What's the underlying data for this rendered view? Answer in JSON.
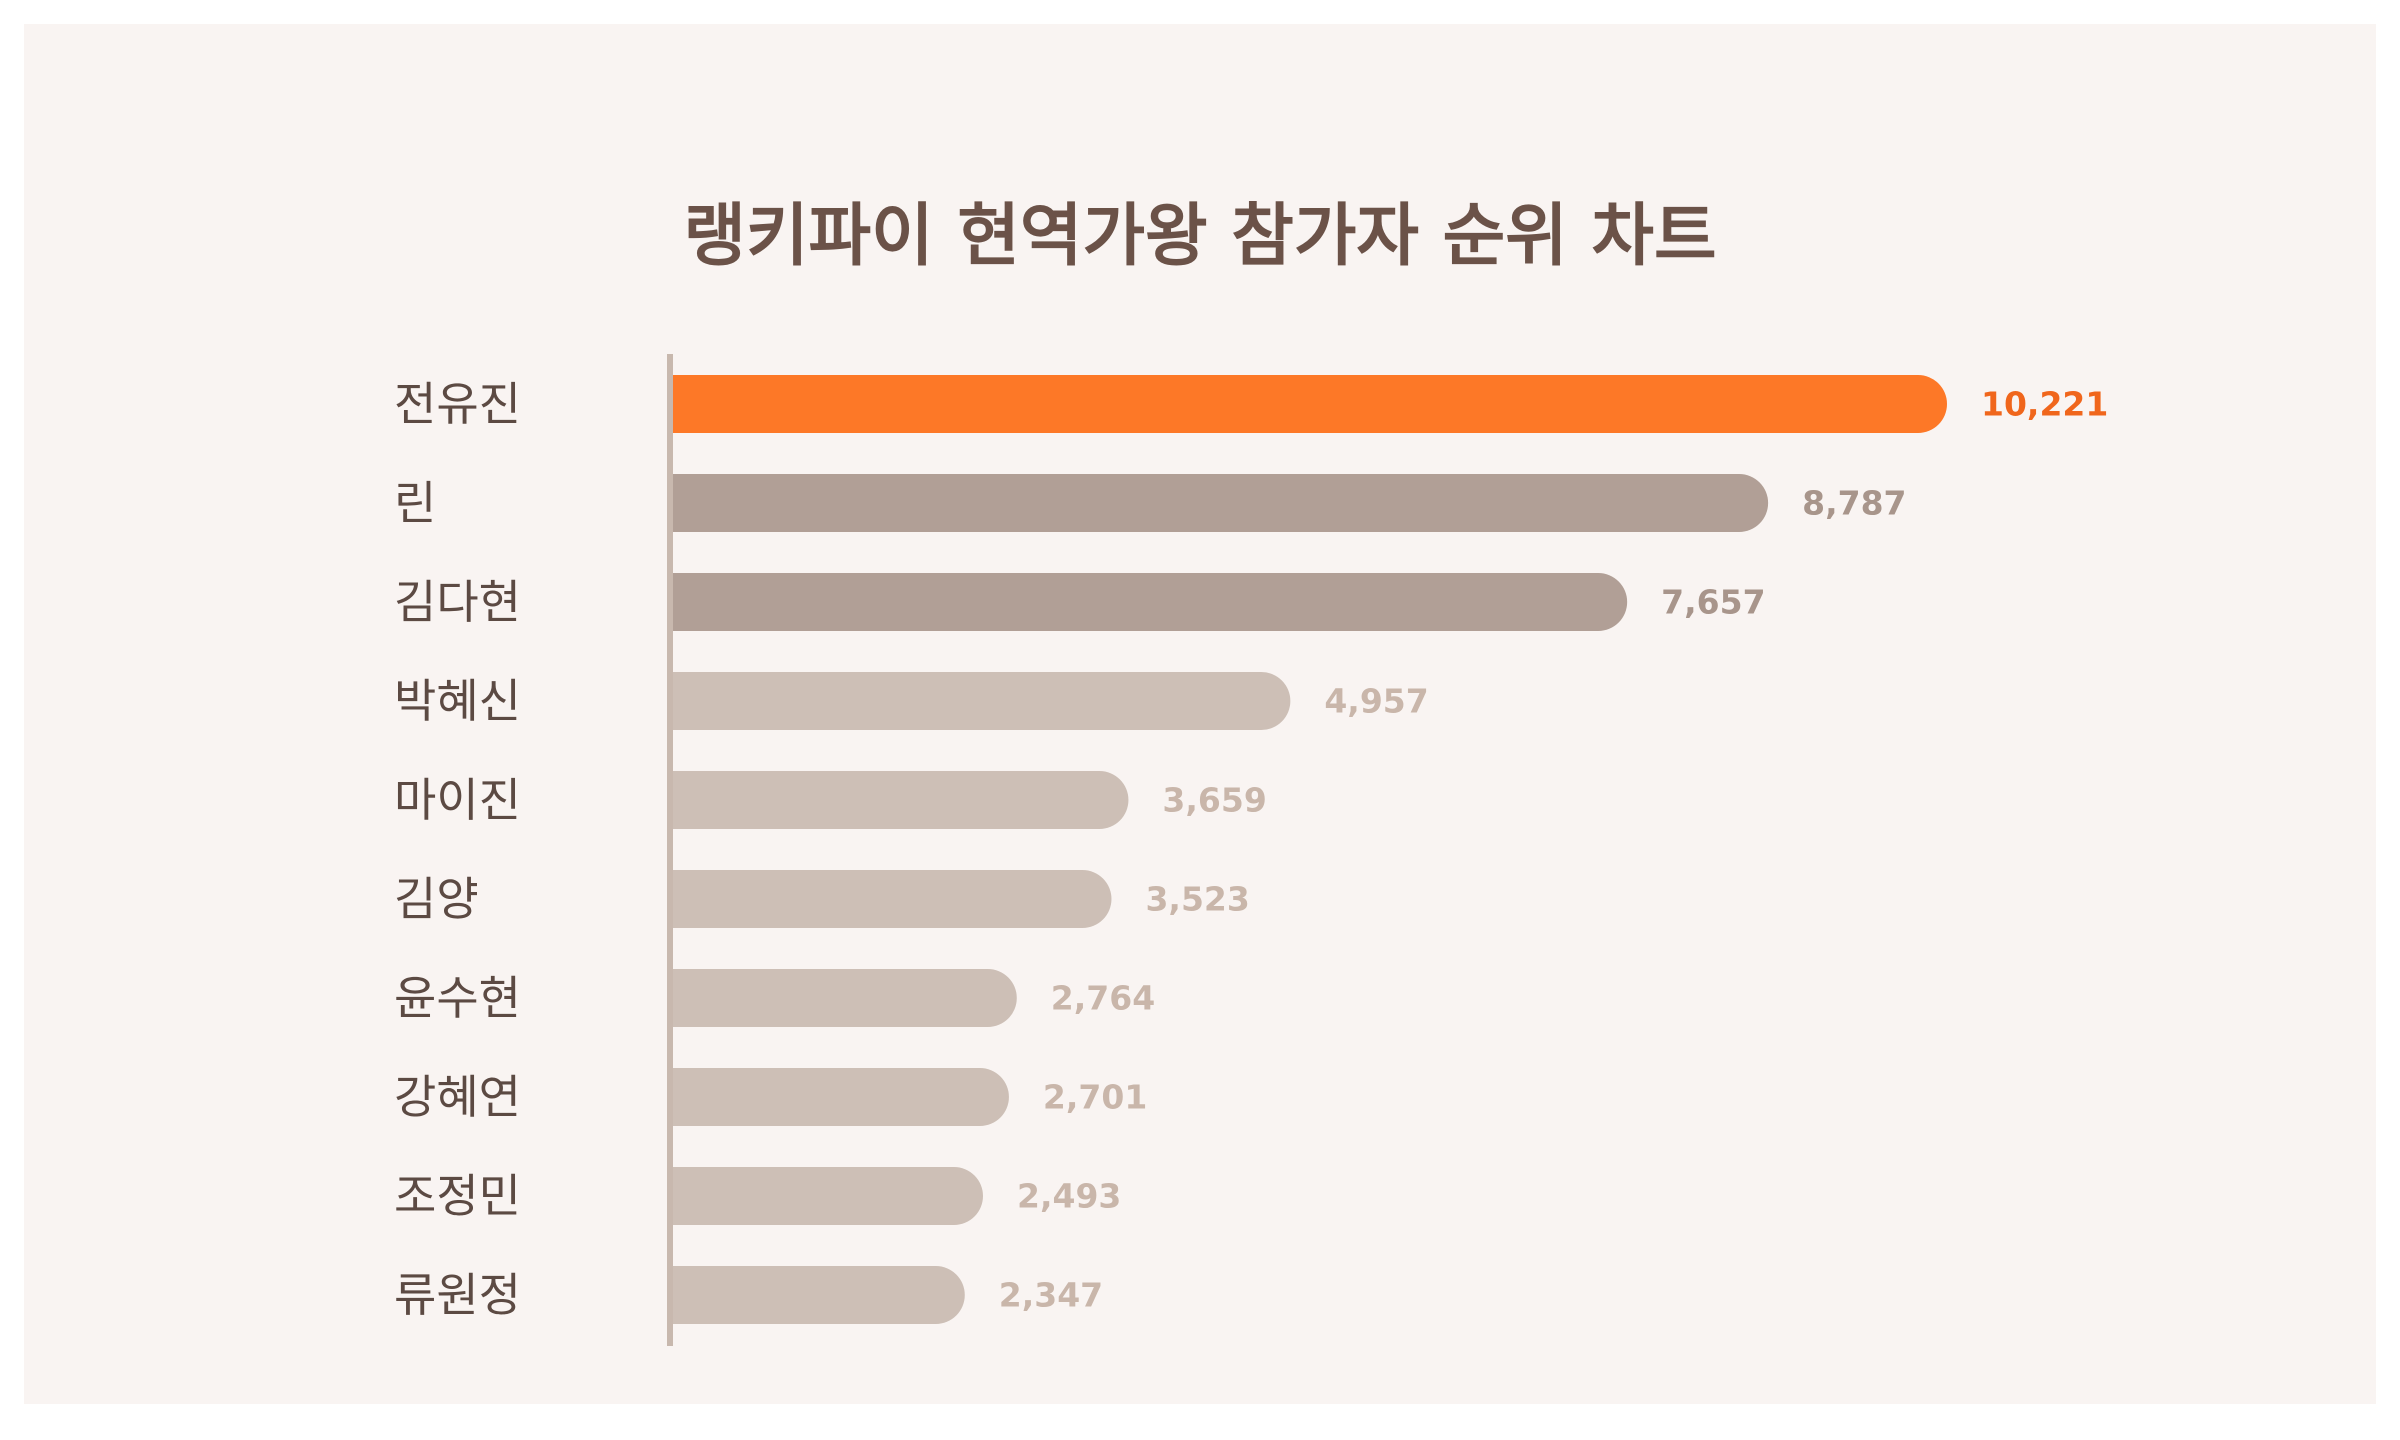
{
  "colors": {
    "background": "#f9f4f2",
    "title": "#6b5248",
    "category_text": "#5c4a43",
    "axis": "#c8b8ae",
    "highlight": "#fd7827",
    "highlight_text": "#f0661c",
    "mid_bar": "#b19f96",
    "mid_text": "#a8958b",
    "light_bar": "#cdbfb6",
    "light_text": "#c9b6aa"
  },
  "chart_data": {
    "type": "bar",
    "orientation": "horizontal",
    "title": "랭키파이 현역가왕 참가자 순위 차트",
    "xlabel": "",
    "ylabel": "",
    "xlim": [
      0,
      10221
    ],
    "grid": false,
    "legend": "none",
    "categories": [
      "전유진",
      "린",
      "김다현",
      "박혜신",
      "마이진",
      "김양",
      "윤수현",
      "강혜연",
      "조정민",
      "류원정"
    ],
    "values": [
      10221,
      8787,
      7657,
      4957,
      3659,
      3523,
      2764,
      2701,
      2493,
      2347
    ],
    "value_labels": [
      "10,221",
      "8,787",
      "7,657",
      "4,957",
      "3,659",
      "3,523",
      "2,764",
      "2,701",
      "2,493",
      "2,347"
    ],
    "bar_tiers": [
      "highlight",
      "mid",
      "mid",
      "light",
      "light",
      "light",
      "light",
      "light",
      "light",
      "light"
    ]
  }
}
